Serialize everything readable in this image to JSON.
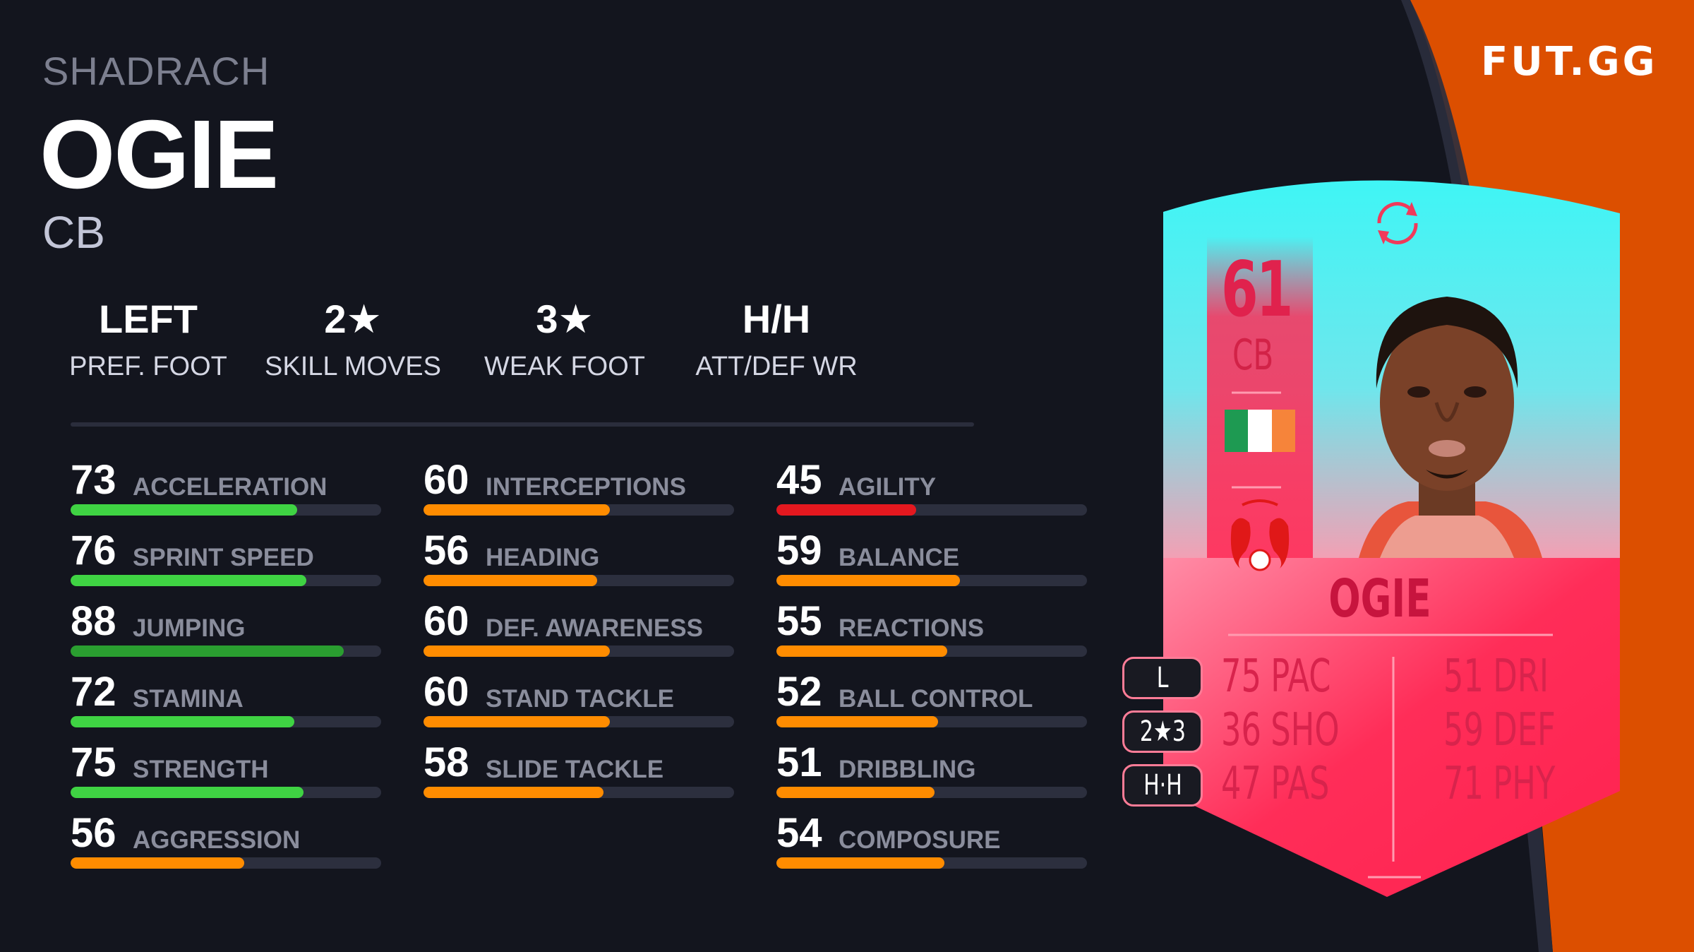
{
  "brand": {
    "logo_text": "FUT.GG",
    "accent_color": "#dc4f00"
  },
  "player": {
    "first_name": "SHADRACH",
    "last_name": "OGIE",
    "position": "CB"
  },
  "traits": [
    {
      "value": "LEFT",
      "label": "PREF. FOOT"
    },
    {
      "value": "2★",
      "label": "SKILL MOVES"
    },
    {
      "value": "3★",
      "label": "WEAK FOOT"
    },
    {
      "value": "H/H",
      "label": "ATT/DEF WR"
    }
  ],
  "stat_colors": {
    "high": "#3fd343",
    "very_high": "#2a9e30",
    "mid": "#ff8c00",
    "low": "#e4181f"
  },
  "stat_columns": [
    [
      {
        "value": 73,
        "label": "ACCELERATION",
        "color": "#3fd343"
      },
      {
        "value": 76,
        "label": "SPRINT SPEED",
        "color": "#3fd343"
      },
      {
        "value": 88,
        "label": "JUMPING",
        "color": "#2a9e30"
      },
      {
        "value": 72,
        "label": "STAMINA",
        "color": "#3fd343"
      },
      {
        "value": 75,
        "label": "STRENGTH",
        "color": "#3fd343"
      },
      {
        "value": 56,
        "label": "AGGRESSION",
        "color": "#ff8c00"
      }
    ],
    [
      {
        "value": 60,
        "label": "INTERCEPTIONS",
        "color": "#ff8c00"
      },
      {
        "value": 56,
        "label": "HEADING",
        "color": "#ff8c00"
      },
      {
        "value": 60,
        "label": "DEF. AWARENESS",
        "color": "#ff8c00"
      },
      {
        "value": 60,
        "label": "STAND TACKLE",
        "color": "#ff8c00"
      },
      {
        "value": 58,
        "label": "SLIDE TACKLE",
        "color": "#ff8c00"
      }
    ],
    [
      {
        "value": 45,
        "label": "AGILITY",
        "color": "#e4181f"
      },
      {
        "value": 59,
        "label": "BALANCE",
        "color": "#ff8c00"
      },
      {
        "value": 55,
        "label": "REACTIONS",
        "color": "#ff8c00"
      },
      {
        "value": 52,
        "label": "BALL CONTROL",
        "color": "#ff8c00"
      },
      {
        "value": 51,
        "label": "DRIBBLING",
        "color": "#ff8c00"
      },
      {
        "value": 54,
        "label": "COMPOSURE",
        "color": "#ff8c00"
      }
    ]
  ],
  "card": {
    "rating": "61",
    "position": "CB",
    "name": "OGIE",
    "nation": "Ireland",
    "club_crest": "red dragons crest",
    "top_icon": "rotate-arrows-icon",
    "badges": [
      "L",
      "2★3",
      "H·H"
    ],
    "face_stats_left": [
      {
        "value": "75",
        "label": "PAC"
      },
      {
        "value": "36",
        "label": "SHO"
      },
      {
        "value": "47",
        "label": "PAS"
      }
    ],
    "face_stats_right": [
      {
        "value": "51",
        "label": "DRI"
      },
      {
        "value": "59",
        "label": "DEF"
      },
      {
        "value": "71",
        "label": "PHY"
      }
    ]
  }
}
